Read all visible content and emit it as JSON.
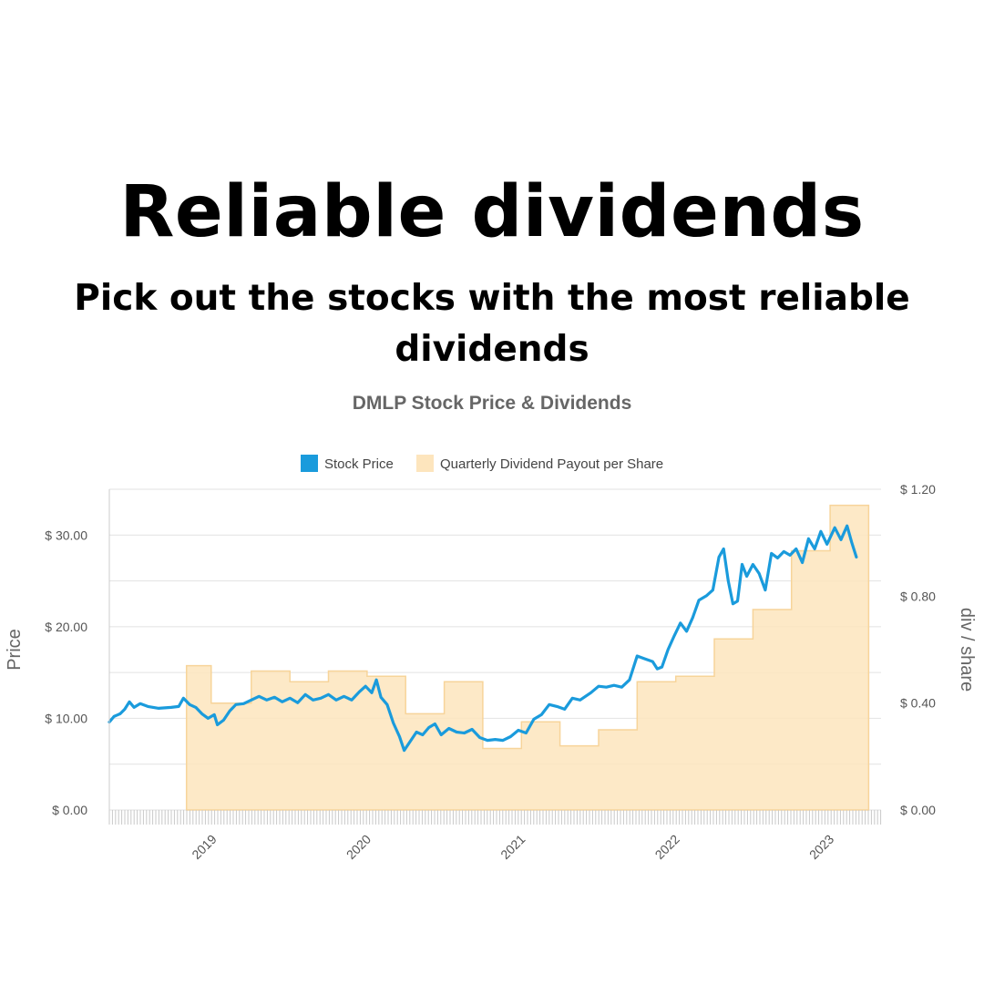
{
  "headline": "Reliable dividends",
  "subheadline": "Pick out the stocks with the most reliable dividends",
  "chart_data": {
    "type": "line",
    "title": "DMLP Stock Price & Dividends",
    "legend_position": "top-center",
    "grid": true,
    "y_left": {
      "label": "Price",
      "range": [
        0,
        35
      ],
      "ticks": [
        0,
        10,
        20,
        30
      ],
      "tick_labels": [
        "$ 0.00",
        "$ 10.00",
        "$ 20.00",
        "$ 30.00"
      ]
    },
    "y_right": {
      "label": "div / share",
      "range": [
        0,
        1.2
      ],
      "ticks": [
        0,
        0.4,
        0.8,
        1.2
      ],
      "tick_labels": [
        "$ 0.00",
        "$ 0.40",
        "$ 0.80",
        "$ 1.20"
      ]
    },
    "x_axis": {
      "range": [
        2018.3,
        2023.3
      ],
      "ticks": [
        2019,
        2020,
        2021,
        2022,
        2023
      ],
      "tick_labels": [
        "2019",
        "2020",
        "2021",
        "2022",
        "2023"
      ]
    },
    "series": [
      {
        "name": "Stock Price",
        "kind": "line",
        "axis": "left",
        "color": "#1a9bdc",
        "points": [
          [
            2018.3,
            9.6
          ],
          [
            2018.33,
            10.2
          ],
          [
            2018.37,
            10.5
          ],
          [
            2018.4,
            11.0
          ],
          [
            2018.43,
            11.8
          ],
          [
            2018.46,
            11.2
          ],
          [
            2018.5,
            11.6
          ],
          [
            2018.55,
            11.3
          ],
          [
            2018.62,
            11.1
          ],
          [
            2018.7,
            11.2
          ],
          [
            2018.75,
            11.3
          ],
          [
            2018.78,
            12.2
          ],
          [
            2018.82,
            11.5
          ],
          [
            2018.86,
            11.2
          ],
          [
            2018.9,
            10.5
          ],
          [
            2018.94,
            10.0
          ],
          [
            2018.98,
            10.4
          ],
          [
            2019.0,
            9.3
          ],
          [
            2019.04,
            9.8
          ],
          [
            2019.08,
            10.8
          ],
          [
            2019.12,
            11.5
          ],
          [
            2019.17,
            11.6
          ],
          [
            2019.22,
            12.0
          ],
          [
            2019.27,
            12.4
          ],
          [
            2019.32,
            12.0
          ],
          [
            2019.37,
            12.3
          ],
          [
            2019.42,
            11.8
          ],
          [
            2019.47,
            12.2
          ],
          [
            2019.52,
            11.7
          ],
          [
            2019.57,
            12.6
          ],
          [
            2019.62,
            12.0
          ],
          [
            2019.67,
            12.2
          ],
          [
            2019.72,
            12.6
          ],
          [
            2019.77,
            12.0
          ],
          [
            2019.82,
            12.4
          ],
          [
            2019.87,
            12.0
          ],
          [
            2019.92,
            12.9
          ],
          [
            2019.96,
            13.5
          ],
          [
            2020.0,
            12.8
          ],
          [
            2020.03,
            14.2
          ],
          [
            2020.06,
            12.3
          ],
          [
            2020.1,
            11.5
          ],
          [
            2020.14,
            9.5
          ],
          [
            2020.18,
            8.0
          ],
          [
            2020.21,
            6.5
          ],
          [
            2020.25,
            7.5
          ],
          [
            2020.29,
            8.5
          ],
          [
            2020.33,
            8.2
          ],
          [
            2020.37,
            9.0
          ],
          [
            2020.41,
            9.4
          ],
          [
            2020.45,
            8.2
          ],
          [
            2020.5,
            8.9
          ],
          [
            2020.55,
            8.5
          ],
          [
            2020.6,
            8.4
          ],
          [
            2020.65,
            8.8
          ],
          [
            2020.7,
            7.9
          ],
          [
            2020.75,
            7.6
          ],
          [
            2020.8,
            7.7
          ],
          [
            2020.85,
            7.6
          ],
          [
            2020.9,
            8.0
          ],
          [
            2020.95,
            8.7
          ],
          [
            2021.0,
            8.4
          ],
          [
            2021.05,
            9.9
          ],
          [
            2021.1,
            10.4
          ],
          [
            2021.15,
            11.5
          ],
          [
            2021.2,
            11.3
          ],
          [
            2021.25,
            11.0
          ],
          [
            2021.3,
            12.2
          ],
          [
            2021.35,
            12.0
          ],
          [
            2021.42,
            12.8
          ],
          [
            2021.47,
            13.5
          ],
          [
            2021.52,
            13.4
          ],
          [
            2021.57,
            13.6
          ],
          [
            2021.62,
            13.4
          ],
          [
            2021.67,
            14.2
          ],
          [
            2021.72,
            16.8
          ],
          [
            2021.77,
            16.5
          ],
          [
            2021.82,
            16.2
          ],
          [
            2021.85,
            15.4
          ],
          [
            2021.88,
            15.6
          ],
          [
            2021.92,
            17.5
          ],
          [
            2021.96,
            19.0
          ],
          [
            2022.0,
            20.4
          ],
          [
            2022.04,
            19.5
          ],
          [
            2022.08,
            21.0
          ],
          [
            2022.12,
            22.9
          ],
          [
            2022.17,
            23.4
          ],
          [
            2022.21,
            24.0
          ],
          [
            2022.25,
            27.6
          ],
          [
            2022.28,
            28.5
          ],
          [
            2022.31,
            25.0
          ],
          [
            2022.34,
            22.5
          ],
          [
            2022.37,
            22.8
          ],
          [
            2022.4,
            26.8
          ],
          [
            2022.43,
            25.5
          ],
          [
            2022.47,
            26.8
          ],
          [
            2022.51,
            25.8
          ],
          [
            2022.55,
            24.0
          ],
          [
            2022.59,
            28.0
          ],
          [
            2022.63,
            27.5
          ],
          [
            2022.67,
            28.2
          ],
          [
            2022.71,
            27.8
          ],
          [
            2022.75,
            28.5
          ],
          [
            2022.79,
            27.0
          ],
          [
            2022.83,
            29.6
          ],
          [
            2022.87,
            28.5
          ],
          [
            2022.91,
            30.4
          ],
          [
            2022.95,
            29.0
          ],
          [
            2023.0,
            30.8
          ],
          [
            2023.04,
            29.5
          ],
          [
            2023.08,
            31.0
          ],
          [
            2023.11,
            29.2
          ],
          [
            2023.14,
            27.6
          ]
        ]
      },
      {
        "name": "Quarterly Dividend Payout per Share",
        "kind": "step-area",
        "axis": "right",
        "color": "#fde5bd",
        "steps": [
          [
            2018.8,
            2018.96,
            0.54
          ],
          [
            2018.96,
            2019.22,
            0.4
          ],
          [
            2019.22,
            2019.47,
            0.52
          ],
          [
            2019.47,
            2019.72,
            0.48
          ],
          [
            2019.72,
            2019.97,
            0.52
          ],
          [
            2019.97,
            2020.22,
            0.5
          ],
          [
            2020.22,
            2020.47,
            0.36
          ],
          [
            2020.47,
            2020.72,
            0.48
          ],
          [
            2020.72,
            2020.97,
            0.23
          ],
          [
            2020.97,
            2021.22,
            0.33
          ],
          [
            2021.22,
            2021.47,
            0.24
          ],
          [
            2021.47,
            2021.72,
            0.3
          ],
          [
            2021.72,
            2021.97,
            0.48
          ],
          [
            2021.97,
            2022.22,
            0.5
          ],
          [
            2022.22,
            2022.47,
            0.64
          ],
          [
            2022.47,
            2022.72,
            0.75
          ],
          [
            2022.72,
            2022.97,
            0.97
          ],
          [
            2022.97,
            2023.22,
            1.14
          ]
        ]
      }
    ]
  }
}
